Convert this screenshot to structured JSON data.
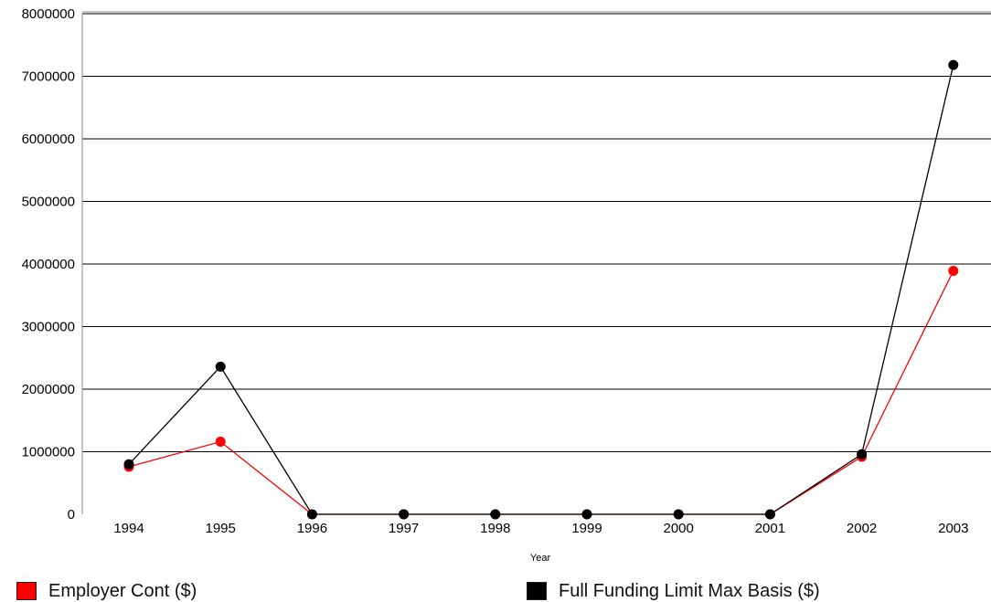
{
  "chart_data": {
    "type": "line",
    "xlabel": "Year",
    "ylabel": "",
    "categories": [
      "1994",
      "1995",
      "1996",
      "1997",
      "1998",
      "1999",
      "2000",
      "2001",
      "2002",
      "2003"
    ],
    "ylim": [
      0,
      8000000
    ],
    "yticks": [
      "0",
      "1000000",
      "2000000",
      "3000000",
      "4000000",
      "5000000",
      "6000000",
      "7000000",
      "8000000"
    ],
    "grid": true,
    "legend_position": "bottom",
    "series": [
      {
        "name": "Employer Cont ($)",
        "color": "#ff0000",
        "values": [
          760000,
          1160000,
          0,
          0,
          0,
          0,
          0,
          0,
          920000,
          3890000
        ]
      },
      {
        "name": "Full Funding Limit Max Basis ($)",
        "color": "#000000",
        "values": [
          800000,
          2360000,
          0,
          0,
          0,
          0,
          0,
          0,
          960000,
          7180000
        ]
      }
    ]
  }
}
